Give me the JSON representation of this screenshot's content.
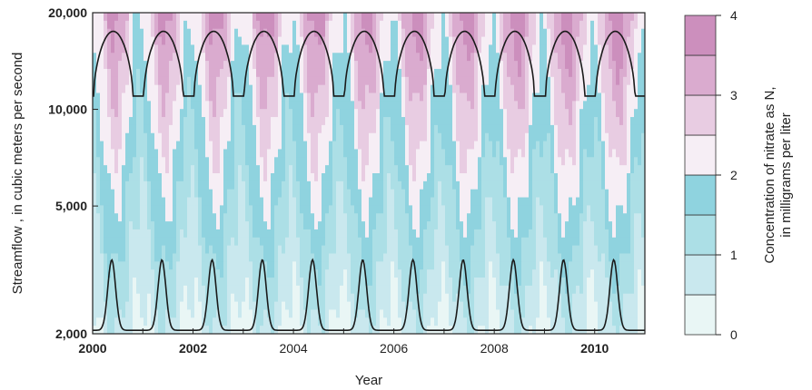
{
  "chart_data": {
    "type": "heatmap",
    "title": "",
    "xlabel": "Year",
    "ylabel": "Streamflow , in cubic meters per second",
    "xlim": [
      2000,
      2011
    ],
    "ylim": [
      2000,
      20000
    ],
    "yscale": "log",
    "x_ticks": [
      "2000",
      "2002",
      "2004",
      "2006",
      "2008",
      "2010"
    ],
    "x_ticks_bold": [
      "2000",
      "2002",
      "2010"
    ],
    "y_ticks": [
      "2,000",
      "5,000",
      "10,000",
      "20,000"
    ],
    "y_tick_values": [
      2000,
      5000,
      10000,
      20000
    ],
    "colorbar": {
      "label": "Concentration of nitrate as N, in milligrams per liter",
      "ticks": [
        "0",
        "1",
        "2",
        "3",
        "4"
      ],
      "levels": [
        0,
        0.5,
        1,
        1.5,
        2,
        2.5,
        3,
        3.5,
        4
      ],
      "colors": [
        "#e9f6f5",
        "#c9e8ee",
        "#acdfe6",
        "#8fd3df",
        "#f6eef5",
        "#e8cce2",
        "#daabcf",
        "#cc8fbd"
      ]
    },
    "grid": false,
    "annotations": "Black curves trace seasonal high and low streamflow envelopes each year",
    "surface_summary": {
      "low_flow_band": "0.5-1.5 mg/L near 2,000-4,000 m3/s",
      "high_flow_band": "2.5-3.5 mg/L near 6,000-15,000 m3/s in mid-year",
      "seasonal_cycle": "annual"
    },
    "upper_envelope_cms": {
      "max": 17500,
      "min": 11000
    },
    "lower_envelope_cms": {
      "max": 3400,
      "min": 2050
    }
  }
}
